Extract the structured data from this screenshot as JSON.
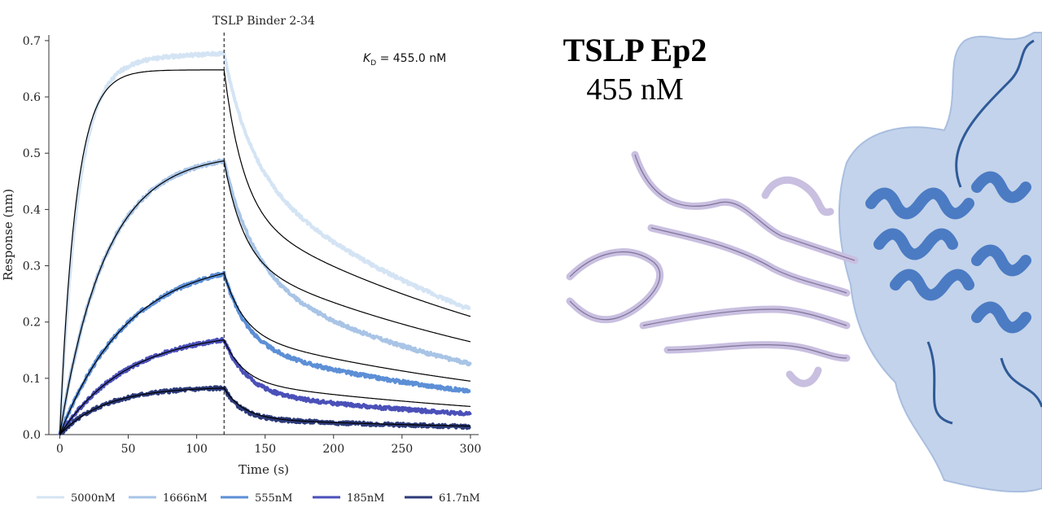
{
  "chart_data": {
    "type": "line",
    "title": "TSLP Binder 2-34",
    "xlabel": "Time (s)",
    "ylabel": "Response (nm)",
    "xlim": [
      -8,
      306
    ],
    "ylim": [
      0,
      0.71
    ],
    "xticks": [
      0,
      50,
      100,
      150,
      200,
      250,
      300
    ],
    "yticks": [
      0.0,
      0.1,
      0.2,
      0.3,
      0.4,
      0.5,
      0.6,
      0.7
    ],
    "association_end": 120,
    "kd_prefix": "K",
    "kd_sub": "D",
    "kd_suffix": " = 455.0 nM",
    "legend_position": "bottom",
    "grid": false,
    "fit_color": "#000000",
    "series": [
      {
        "name": "5000nM",
        "color": "#d4e4f4",
        "assoc_plateau": 0.665,
        "assoc_k": 0.075,
        "assoc_drift": 0.012,
        "dissoc_fast": 0.3,
        "dissoc_fast_k": 0.05,
        "dissoc_slow_k": 0.0042,
        "fit_plateau": 0.648,
        "fit_k": 0.085,
        "fit_end": 0.21
      },
      {
        "name": "1666nM",
        "color": "#a8c4e6",
        "assoc_plateau": 0.5,
        "assoc_k": 0.03,
        "assoc_drift": 0.0,
        "dissoc_fast": 0.42,
        "dissoc_fast_k": 0.045,
        "dissoc_slow_k": 0.0045,
        "fit_plateau": 0.5,
        "fit_k": 0.03,
        "fit_end": 0.165
      },
      {
        "name": "555nM",
        "color": "#5c8fd6",
        "assoc_plateau": 0.315,
        "assoc_k": 0.02,
        "assoc_drift": 0.0,
        "dissoc_fast": 0.45,
        "dissoc_fast_k": 0.06,
        "dissoc_slow_k": 0.004,
        "fit_plateau": 0.315,
        "fit_k": 0.02,
        "fit_end": 0.095
      },
      {
        "name": "185nM",
        "color": "#4a50b8",
        "assoc_plateau": 0.185,
        "assoc_k": 0.02,
        "assoc_drift": 0.0,
        "dissoc_fast": 0.55,
        "dissoc_fast_k": 0.06,
        "dissoc_slow_k": 0.004,
        "fit_plateau": 0.185,
        "fit_k": 0.02,
        "fit_end": 0.05
      },
      {
        "name": "61.7nM",
        "color": "#2c3a78",
        "assoc_plateau": 0.085,
        "assoc_k": 0.03,
        "assoc_drift": 0.0,
        "dissoc_fast": 0.65,
        "dissoc_fast_k": 0.08,
        "dissoc_slow_k": 0.004,
        "fit_plateau": 0.085,
        "fit_k": 0.03,
        "fit_end": 0.015
      }
    ]
  },
  "panel": {
    "title": "TSLP Ep2",
    "value": "455 nM",
    "binder_color": "#c9bfe0",
    "binder_edge": "#7f7399",
    "target_color": "#3f72bf",
    "surface_color": "#b8cbe8"
  }
}
